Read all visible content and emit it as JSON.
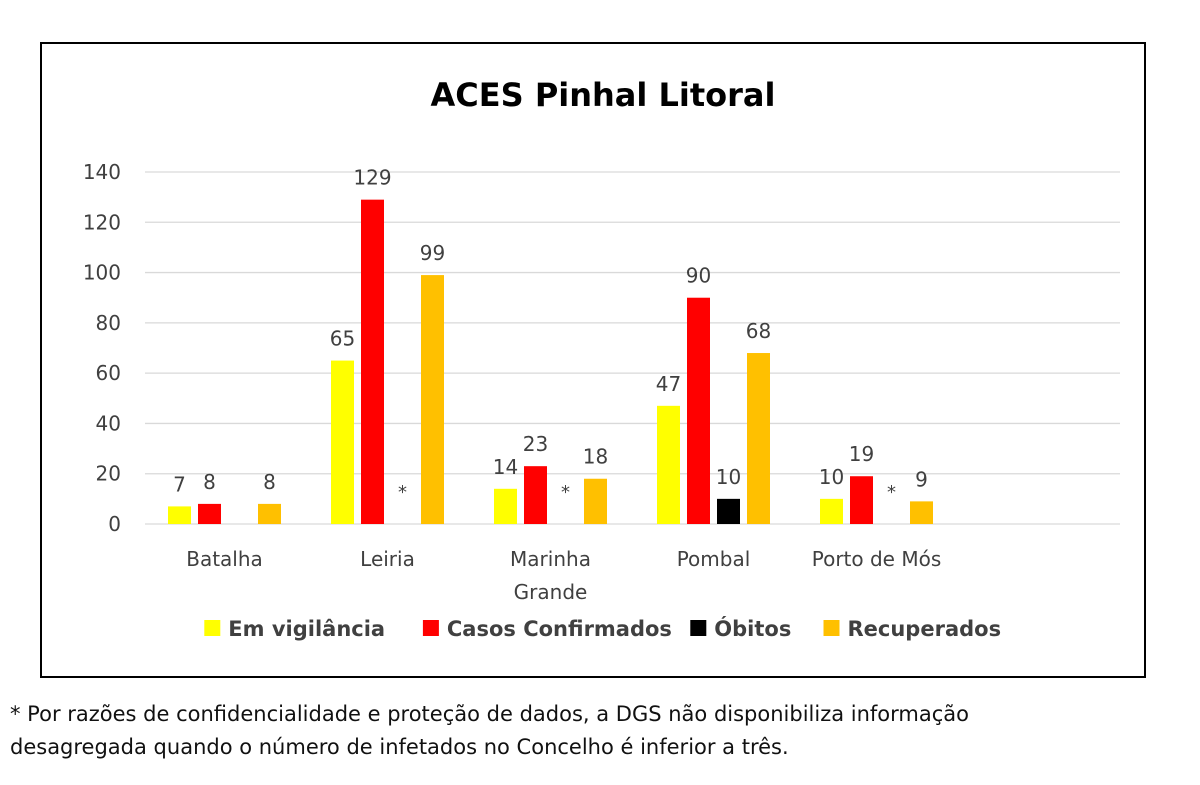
{
  "chart_data": {
    "type": "bar",
    "title": "ACES Pinhal Litoral",
    "xlabel": "",
    "ylabel": "",
    "ylim": [
      0,
      140
    ],
    "yticks": [
      0,
      20,
      40,
      60,
      80,
      100,
      120,
      140
    ],
    "grid": true,
    "legend_position": "bottom",
    "categories": [
      [
        "Batalha"
      ],
      [
        "Leiria"
      ],
      [
        "Marinha",
        "Grande"
      ],
      [
        "Pombal"
      ],
      [
        "Porto de Mós"
      ]
    ],
    "series": [
      {
        "name": "Em vigilância",
        "color": "#FFFF00",
        "values": [
          7,
          65,
          14,
          47,
          10
        ]
      },
      {
        "name": "Casos Confirmados",
        "color": "#FF0000",
        "values": [
          8,
          129,
          23,
          90,
          19
        ]
      },
      {
        "name": "Óbitos",
        "color": "#000000",
        "values": [
          null,
          null,
          null,
          10,
          null
        ]
      },
      {
        "name": "Recuperados",
        "color": "#FFC000",
        "values": [
          8,
          99,
          18,
          68,
          9
        ]
      }
    ],
    "annotations": [
      {
        "category": 1,
        "series": 2,
        "text": "*"
      },
      {
        "category": 2,
        "series": 2,
        "text": "*"
      },
      {
        "category": 4,
        "series": 2,
        "text": "*"
      }
    ]
  },
  "footnote": {
    "line1": "* Por razões de confidencialidade e proteção de dados, a DGS não disponibiliza informação",
    "line2": "desagregada quando o número de infetados no Concelho é inferior a três."
  }
}
